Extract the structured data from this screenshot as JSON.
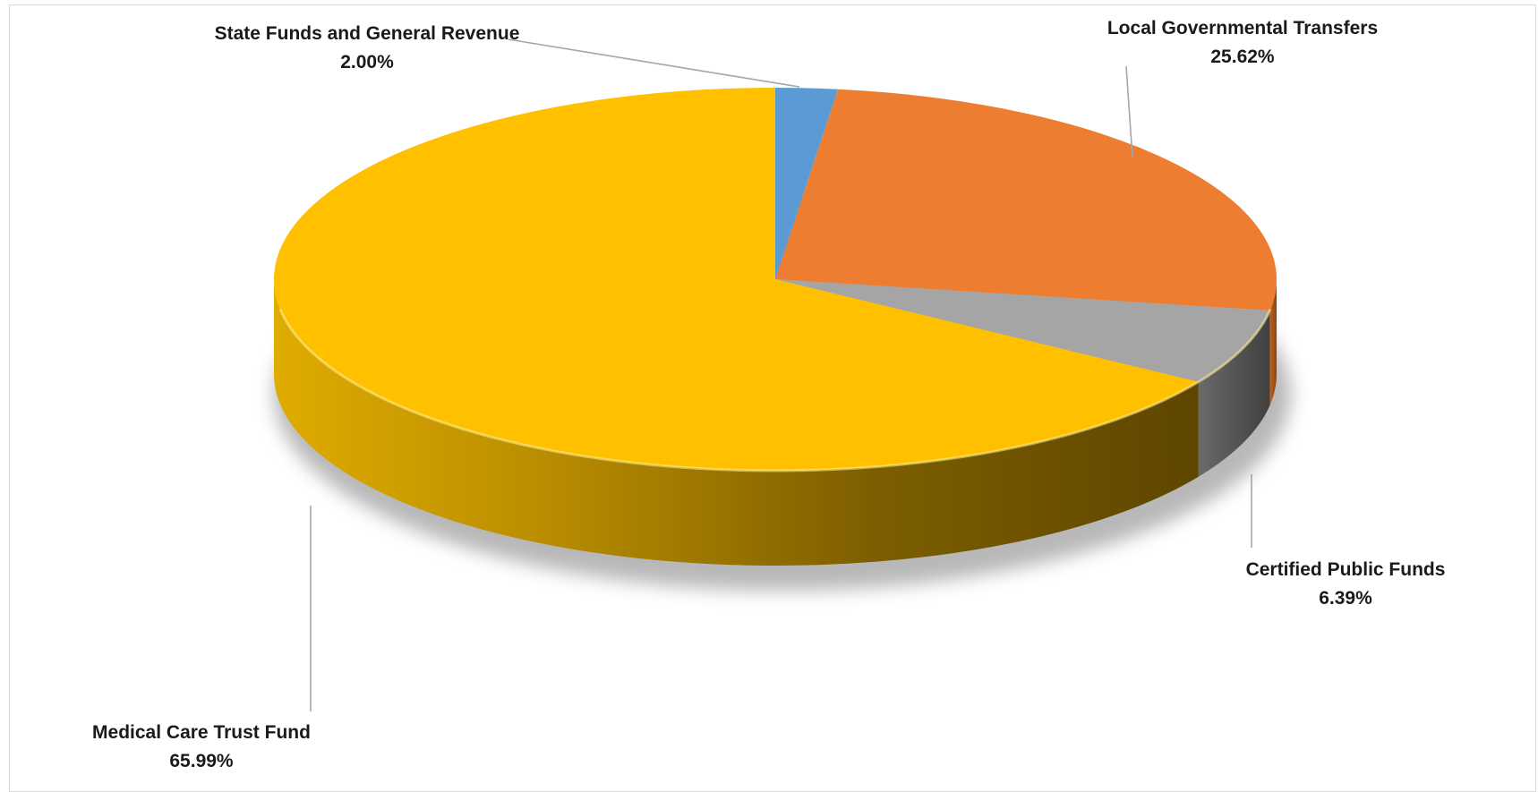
{
  "chart_data": {
    "type": "pie",
    "variant": "3d",
    "title": "",
    "start_angle_deg": 0,
    "direction": "clockwise",
    "slices": [
      {
        "label": "State Funds and General Revenue",
        "value": 2.0,
        "value_label": "2.00%",
        "color": "#5B9BD5"
      },
      {
        "label": "Local Governmental Transfers",
        "value": 25.62,
        "value_label": "25.62%",
        "color": "#ED7D31"
      },
      {
        "label": "Certified Public Funds",
        "value": 6.39,
        "value_label": "6.39%",
        "color": "#A5A5A5"
      },
      {
        "label": "Medical Care Trust Fund",
        "value": 65.99,
        "value_label": "65.99%",
        "color": "#FFC000"
      }
    ],
    "legend": "none",
    "data_labels": "outside-with-leader-lines"
  }
}
